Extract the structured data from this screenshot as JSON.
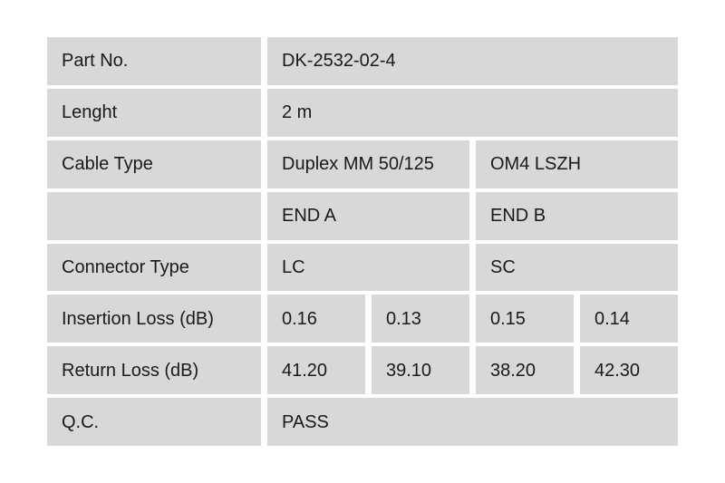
{
  "colors": {
    "page_bg": "#ffffff",
    "cell_bg": "#d8d8d8",
    "text": "#1a1a1a"
  },
  "table": {
    "rows": [
      {
        "key": "part-no",
        "label": "Part No.",
        "values": [
          {
            "text": "DK-2532-02-4",
            "span": 4
          }
        ]
      },
      {
        "key": "length",
        "label": "Lenght",
        "values": [
          {
            "text": "2 m",
            "span": 4
          }
        ]
      },
      {
        "key": "cable-type",
        "label": "Cable Type",
        "values": [
          {
            "text": "Duplex MM 50/125",
            "span": 2
          },
          {
            "text": "OM4 LSZH",
            "span": 2
          }
        ]
      },
      {
        "key": "end-header",
        "label": "",
        "values": [
          {
            "text": "END A",
            "span": 2
          },
          {
            "text": "END B",
            "span": 2
          }
        ]
      },
      {
        "key": "connector-type",
        "label": "Connector Type",
        "values": [
          {
            "text": "LC",
            "span": 2
          },
          {
            "text": "SC",
            "span": 2
          }
        ]
      },
      {
        "key": "insertion-loss",
        "label": "Insertion Loss (dB)",
        "values": [
          {
            "text": "0.16",
            "span": 1
          },
          {
            "text": "0.13",
            "span": 1
          },
          {
            "text": "0.15",
            "span": 1
          },
          {
            "text": "0.14",
            "span": 1
          }
        ]
      },
      {
        "key": "return-loss",
        "label": "Return Loss (dB)",
        "values": [
          {
            "text": "41.20",
            "span": 1
          },
          {
            "text": "39.10",
            "span": 1
          },
          {
            "text": "38.20",
            "span": 1
          },
          {
            "text": "42.30",
            "span": 1
          }
        ]
      },
      {
        "key": "qc",
        "label": "Q.C.",
        "values": [
          {
            "text": "PASS",
            "span": 4
          }
        ]
      }
    ]
  }
}
